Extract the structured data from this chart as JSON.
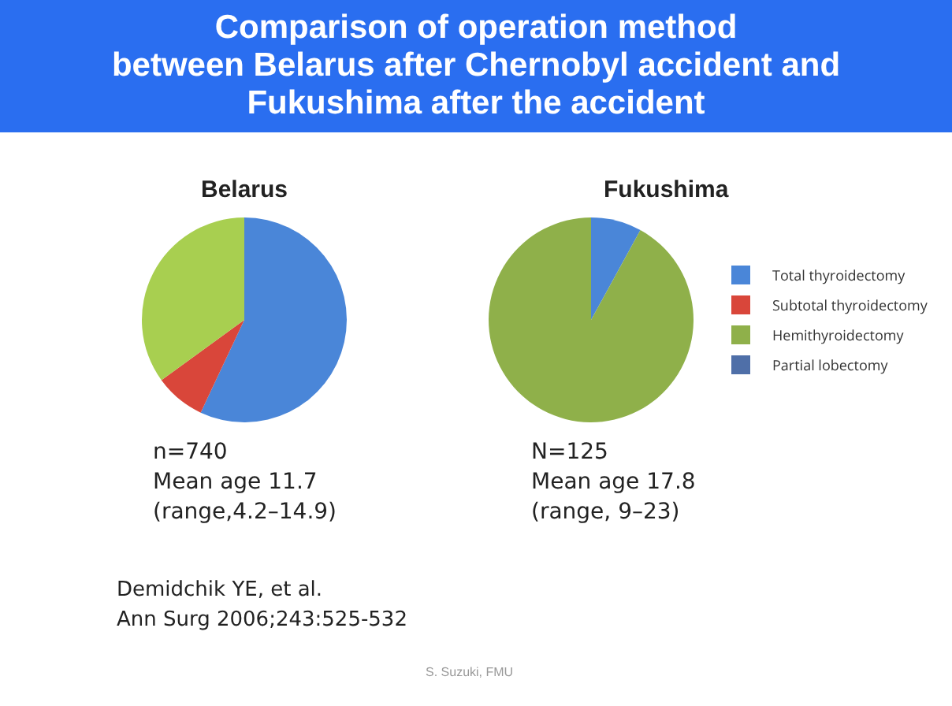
{
  "chart_data": [
    {
      "type": "other",
      "title": "Comparison of operation method\nbetween Belarus after Chernobyl accident and\nFukushima after the accident"
    },
    {
      "type": "pie",
      "title": "Belarus",
      "categories": [
        null,
        null,
        null,
        null
      ],
      "values": [
        57,
        8,
        35,
        0
      ],
      "colors": [
        "#4a86d8",
        "#d9463a",
        "#a8cf50",
        "#4f6fa8"
      ],
      "legend": false,
      "annotations": [
        "n=740",
        "Mean age 11.7",
        "(range,4.2–14.9)",
        "Demidchik YE, et al.",
        "Ann Surg 2006;243:525-532"
      ]
    },
    {
      "type": "pie",
      "title": "Fukushima",
      "categories": [
        "Total thyroidectomy",
        "Subtotal thyroidectomy",
        "Hemithyroidectomy",
        "Partial lobectomy"
      ],
      "values": [
        8,
        0,
        92,
        0
      ],
      "colors": [
        "#4a86d8",
        "#d9463a",
        "#8fb04a",
        "#4f6fa8"
      ],
      "legend": "right",
      "annotations": [
        "N=125",
        "Mean age 17.8",
        "(range, 9–23)",
        "S. Suzuki, FMU"
      ]
    }
  ]
}
